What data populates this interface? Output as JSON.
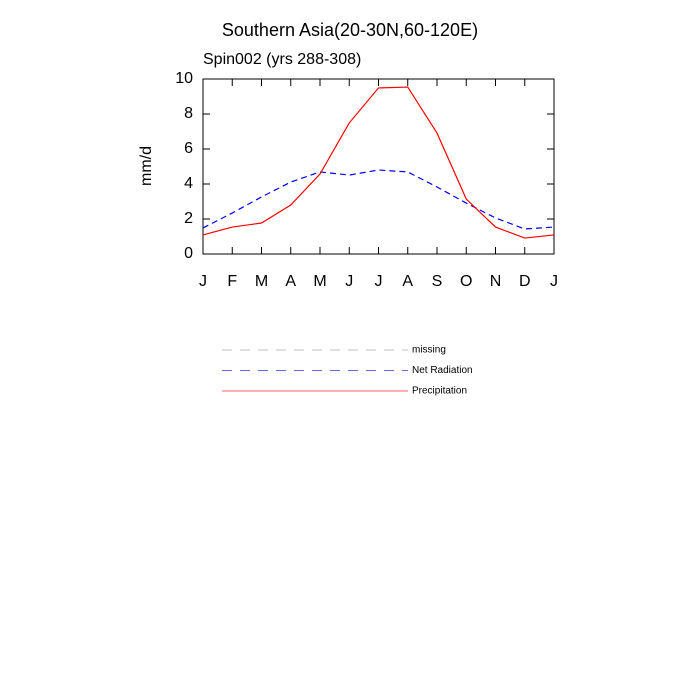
{
  "chart_data": {
    "type": "line",
    "title": "Southern Asia(20-30N,60-120E)",
    "subtitle": "Spin002 (yrs 288-308)",
    "y_label": "mm/d",
    "categories": [
      "J",
      "F",
      "M",
      "A",
      "M",
      "J",
      "J",
      "A",
      "S",
      "O",
      "N",
      "D",
      "J"
    ],
    "ylim": [
      0,
      10
    ],
    "yticks": [
      0,
      2,
      4,
      6,
      8,
      10
    ],
    "series": [
      {
        "name": "missing",
        "color": "#999999",
        "dash": true,
        "values": [
          null,
          null,
          null,
          null,
          null,
          null,
          null,
          null,
          null,
          null,
          null,
          null,
          null
        ]
      },
      {
        "name": "Net Radiation",
        "color": "#0000ff",
        "dash": true,
        "values": [
          1.49,
          2.34,
          3.26,
          4.11,
          4.69,
          4.51,
          4.8,
          4.69,
          3.83,
          2.91,
          2.06,
          1.43,
          1.54
        ]
      },
      {
        "name": "Precipitation",
        "color": "#ff0000",
        "dash": false,
        "values": [
          1.09,
          1.54,
          1.77,
          2.8,
          4.57,
          7.49,
          9.49,
          9.54,
          6.91,
          3.14,
          1.54,
          0.91,
          1.09
        ]
      }
    ]
  }
}
